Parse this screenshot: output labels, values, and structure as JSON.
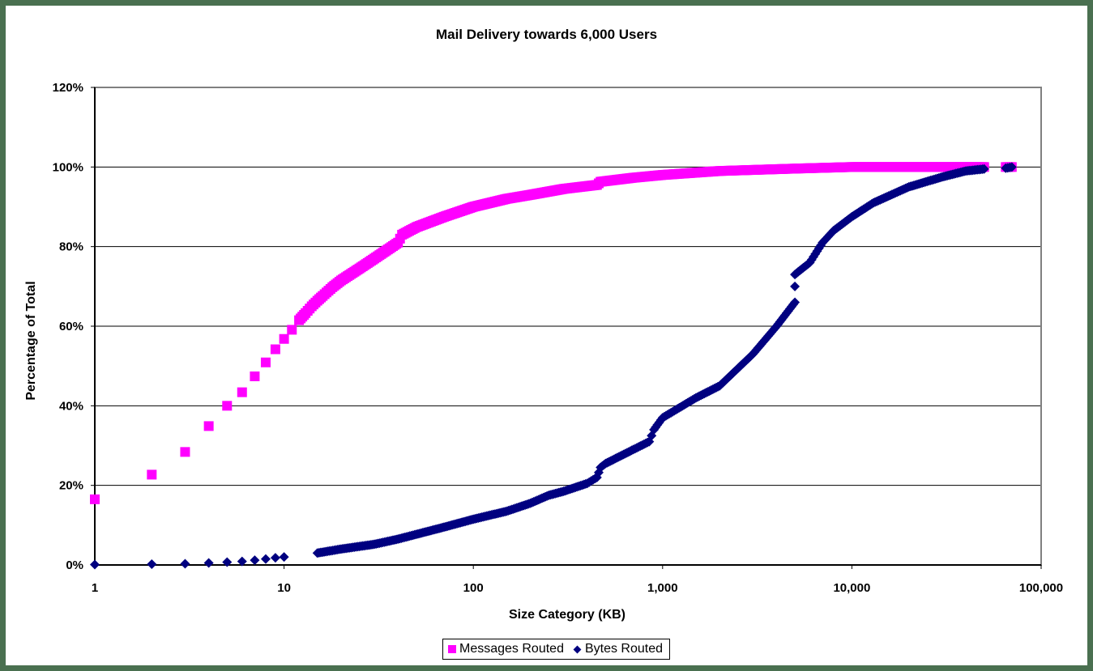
{
  "chart": {
    "title": "Mail Delivery towards 6,000 Users",
    "xlabel": "Size Category (KB)",
    "ylabel": "Percentage of Total",
    "y_ticks": [
      "0%",
      "20%",
      "40%",
      "60%",
      "80%",
      "100%",
      "120%"
    ],
    "x_ticks": [
      "1",
      "10",
      "100",
      "1,000",
      "10,000",
      "100,000"
    ],
    "legend": {
      "messages_label": "Messages Routed",
      "bytes_label": "Bytes Routed"
    },
    "colors": {
      "frame": "#4a7050",
      "messages": "#ff00ff",
      "bytes": "#000080",
      "gridline": "#000000",
      "plot_border": "#808080"
    }
  },
  "chart_data": {
    "type": "scatter",
    "title": "Mail Delivery towards 6,000 Users",
    "xlabel": "Size Category (KB)",
    "ylabel": "Percentage of Total",
    "xscale": "log",
    "xlim": [
      1,
      100000
    ],
    "ylim": [
      0,
      120
    ],
    "y_unit": "%",
    "grid": "horizontal major gridlines",
    "legend_position": "bottom",
    "series": [
      {
        "name": "Messages Routed",
        "marker": "square",
        "color": "#ff00ff",
        "x": [
          1,
          2,
          3,
          4,
          5,
          6,
          7,
          8,
          9,
          10,
          11,
          12,
          13,
          14,
          15,
          16,
          18,
          20,
          25,
          30,
          40,
          42,
          50,
          70,
          100,
          150,
          200,
          300,
          450,
          470,
          700,
          1000,
          2000,
          5000,
          10000,
          50000,
          65000,
          70000
        ],
        "values": [
          16.5,
          22.7,
          28.4,
          34.9,
          40.0,
          43.4,
          47.4,
          50.9,
          54.2,
          56.8,
          59.1,
          61.5,
          63.3,
          65.0,
          66.4,
          67.6,
          69.8,
          71.5,
          74.5,
          77.0,
          81.0,
          83.0,
          84.9,
          87.5,
          90.0,
          92.0,
          93.0,
          94.5,
          95.5,
          96.3,
          97.3,
          98.0,
          99.0,
          99.6,
          100.0,
          100.0,
          100.0,
          100.0
        ]
      },
      {
        "name": "Bytes Routed",
        "marker": "diamond",
        "color": "#000080",
        "x": [
          1,
          2,
          3,
          4,
          5,
          6,
          7,
          8,
          9,
          10,
          15,
          20,
          30,
          40,
          50,
          70,
          100,
          150,
          200,
          250,
          300,
          400,
          450,
          470,
          500,
          700,
          850,
          900,
          1000,
          1500,
          2000,
          3000,
          4000,
          5000,
          5000,
          5000,
          6000,
          7000,
          8000,
          10000,
          13000,
          20000,
          30000,
          40000,
          50000,
          65000,
          70000
        ],
        "values": [
          0.1,
          0.2,
          0.3,
          0.5,
          0.7,
          0.9,
          1.2,
          1.5,
          1.8,
          2.0,
          3.0,
          4.0,
          5.2,
          6.5,
          7.7,
          9.5,
          11.5,
          13.5,
          15.5,
          17.5,
          18.5,
          20.5,
          22.0,
          24.5,
          25.5,
          29.0,
          31.0,
          34.0,
          37.0,
          42.0,
          45.0,
          53.0,
          60.0,
          66.0,
          70.0,
          73.0,
          76.0,
          81.0,
          84.0,
          87.5,
          91.0,
          95.0,
          97.5,
          99.0,
          99.5,
          99.7,
          100.0
        ]
      }
    ]
  }
}
